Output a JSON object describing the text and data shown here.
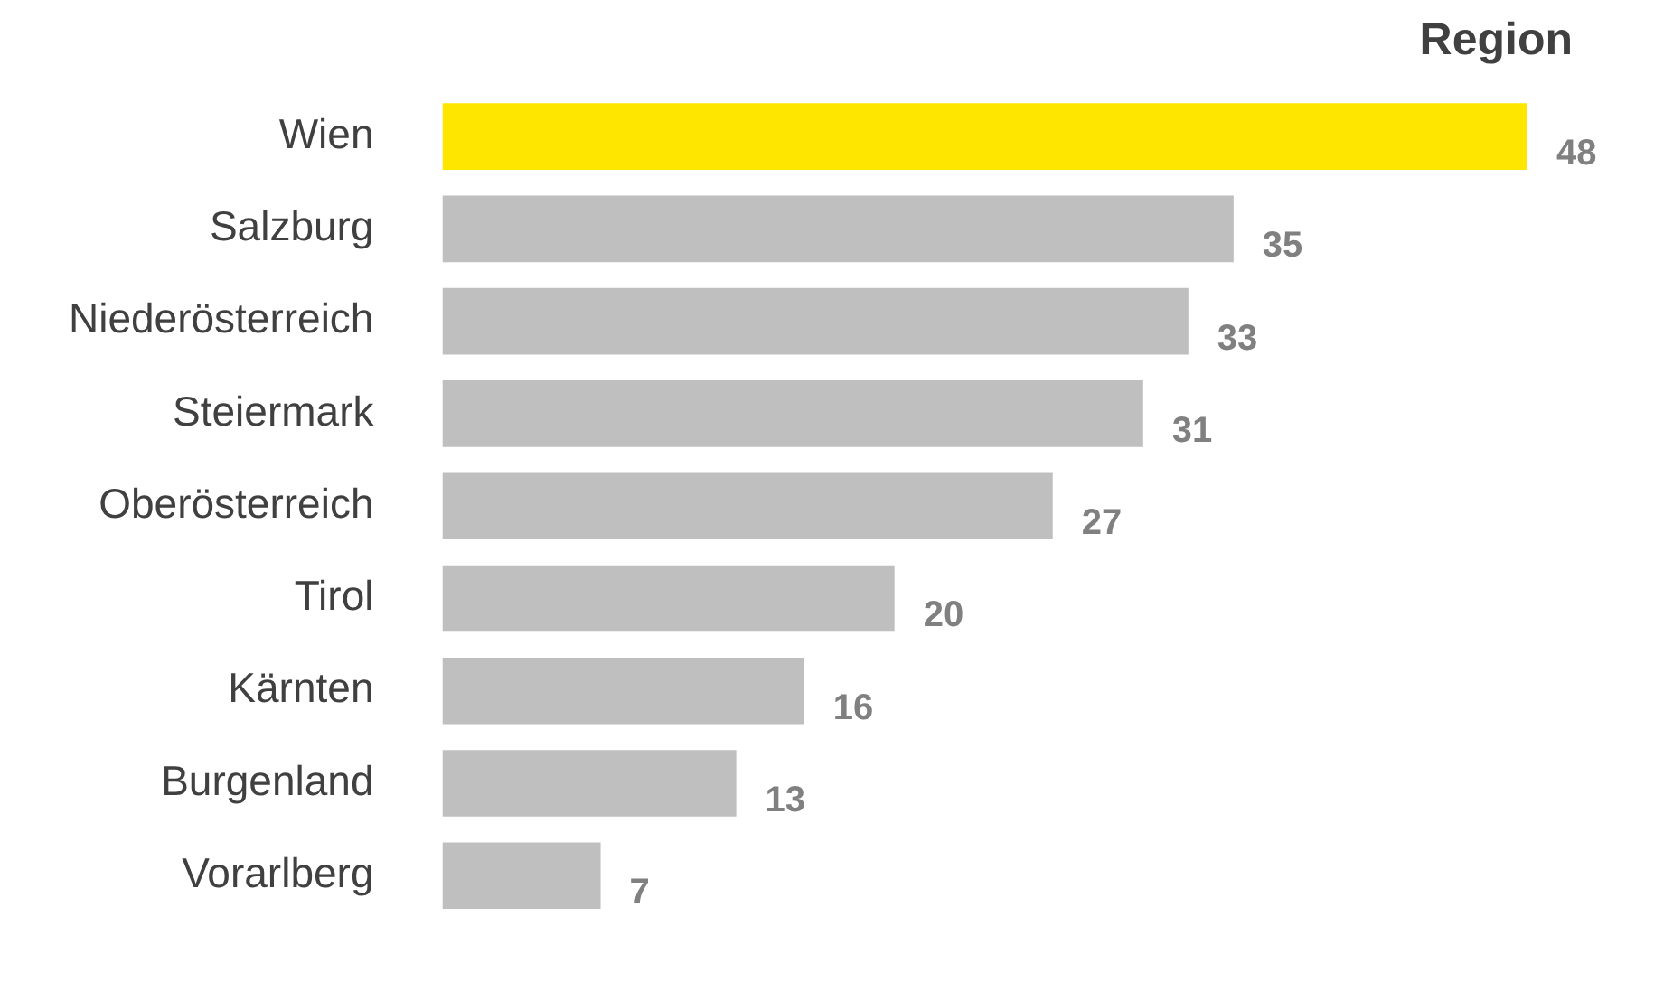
{
  "chart_data": {
    "type": "bar",
    "orientation": "horizontal",
    "title": "Region",
    "categories": [
      "Wien",
      "Salzburg",
      "Niederösterreich",
      "Steiermark",
      "Oberösterreich",
      "Tirol",
      "Kärnten",
      "Burgenland",
      "Vorarlberg"
    ],
    "values": [
      48,
      35,
      33,
      31,
      27,
      20,
      16,
      13,
      7
    ],
    "colors": [
      "#ffe600",
      "#bfbfbf",
      "#bfbfbf",
      "#bfbfbf",
      "#bfbfbf",
      "#bfbfbf",
      "#bfbfbf",
      "#bfbfbf",
      "#bfbfbf"
    ],
    "data_labels": true,
    "grid": false,
    "legend": false,
    "tick_labels": "y"
  }
}
